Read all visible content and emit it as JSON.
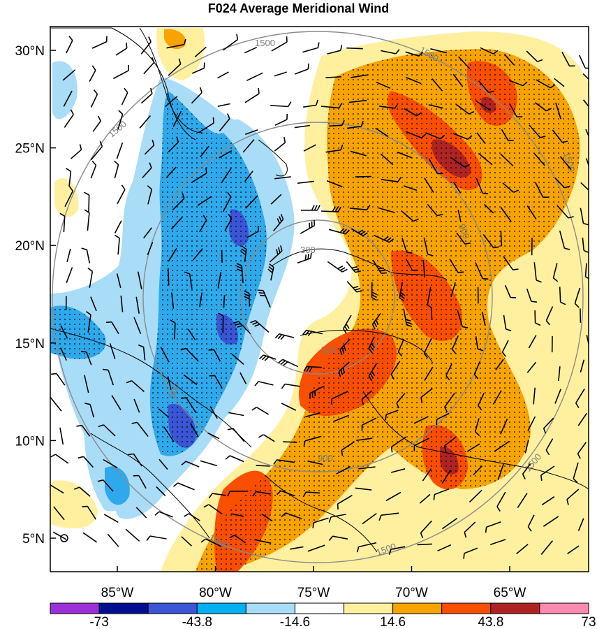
{
  "title": "F024 Average Meridional Wind",
  "map": {
    "lat_labels": [
      {
        "label": "30°N",
        "lat": 30
      },
      {
        "label": "25°N",
        "lat": 25
      },
      {
        "label": "20°N",
        "lat": 20
      },
      {
        "label": "15°N",
        "lat": 15
      },
      {
        "label": "10°N",
        "lat": 10
      },
      {
        "label": "5°N",
        "lat": 5
      }
    ],
    "lon_labels": [
      {
        "label": "85°W",
        "lon": -85
      },
      {
        "label": "80°W",
        "lon": -80
      },
      {
        "label": "75°W",
        "lon": -75
      },
      {
        "label": "70°W",
        "lon": -70
      },
      {
        "label": "65°W",
        "lon": -65
      }
    ],
    "range_ring_labels": [
      "300",
      "900",
      "1500"
    ],
    "stippling": true,
    "wind_barbs": true
  },
  "colorbar": {
    "colors": [
      "#9b30d8",
      "#000f8f",
      "#3a55d6",
      "#00b0f0",
      "#a9dcf7",
      "#ffffff",
      "#fff0a0",
      "#f7a300",
      "#fa4e00",
      "#b02323",
      "#ff8ab0"
    ],
    "tick_labels": [
      "-73",
      "-43.8",
      "-14.6",
      "14.6",
      "43.8",
      "73"
    ]
  },
  "legend_colors": {
    "light_blue": "#a9dcf7",
    "mid_blue": "#2ea9ec",
    "dark_blue": "#3a55d6",
    "light_yellow": "#fff0a0",
    "orange": "#f7a300",
    "red_orange": "#fa4e00",
    "dark_red": "#b02323"
  }
}
